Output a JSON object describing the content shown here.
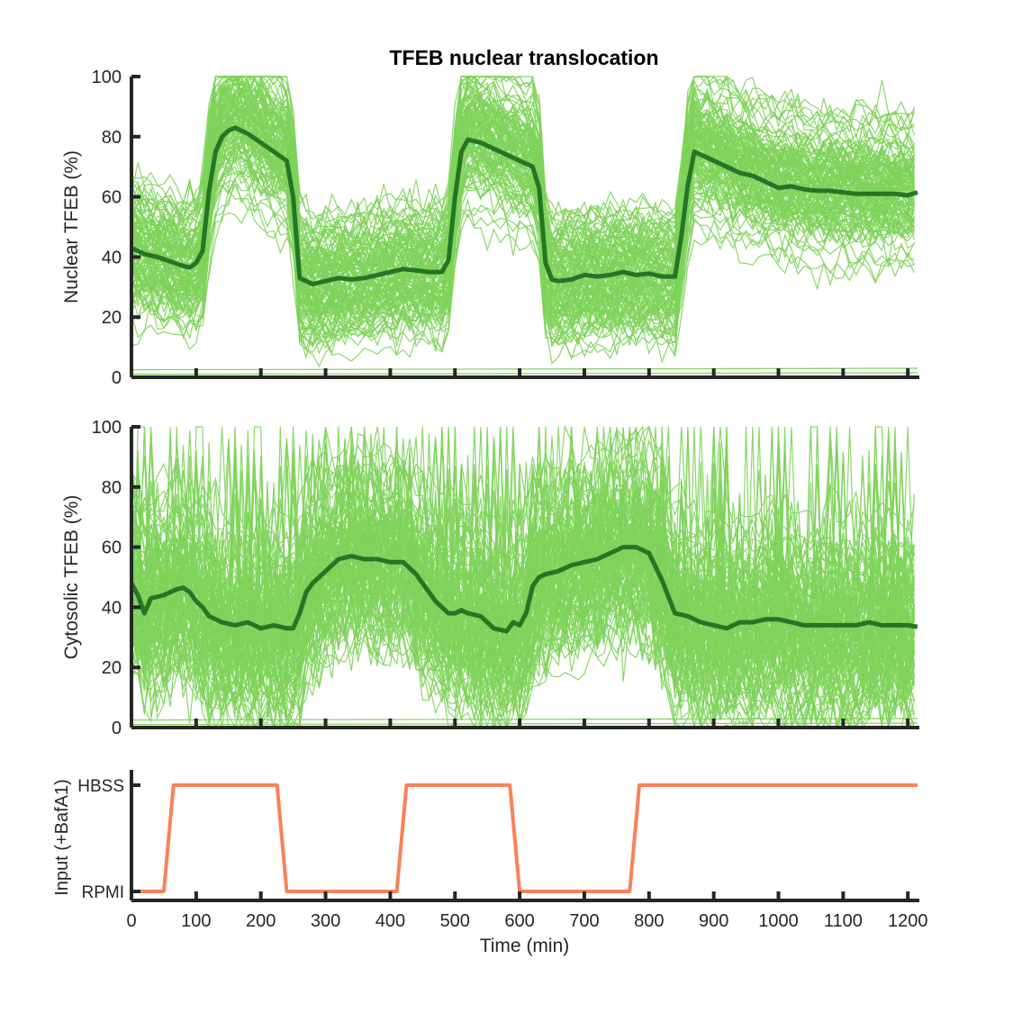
{
  "title": "TFEB nuclear translocation",
  "chart_data": [
    {
      "type": "line",
      "ylabel": "Nuclear TFEB (%)",
      "xlim": [
        0,
        1215
      ],
      "ylim": [
        0,
        100
      ],
      "yticks": [
        0,
        20,
        40,
        60,
        80,
        100
      ],
      "xticks": [
        0,
        100,
        200,
        300,
        400,
        500,
        600,
        700,
        800,
        900,
        1000,
        1100,
        1200
      ],
      "colors": {
        "cells": "#7ed35a",
        "mean": "#267526"
      },
      "mean_series": {
        "x": [
          0,
          20,
          40,
          60,
          80,
          90,
          100,
          110,
          120,
          130,
          140,
          150,
          160,
          180,
          200,
          220,
          240,
          250,
          260,
          280,
          300,
          320,
          340,
          360,
          380,
          400,
          420,
          440,
          460,
          470,
          480,
          490,
          500,
          510,
          520,
          540,
          560,
          580,
          600,
          620,
          630,
          640,
          650,
          660,
          680,
          700,
          720,
          740,
          760,
          780,
          800,
          820,
          840,
          850,
          860,
          870,
          880,
          900,
          920,
          940,
          960,
          980,
          1000,
          1020,
          1040,
          1060,
          1080,
          1100,
          1120,
          1140,
          1160,
          1180,
          1200,
          1215
        ],
        "y": [
          43,
          41,
          40,
          38.5,
          37,
          36.5,
          38,
          42,
          62,
          75,
          80,
          82,
          83,
          81,
          78,
          75,
          72,
          60,
          33,
          31,
          32,
          33,
          32.5,
          33,
          34,
          35,
          36,
          35.5,
          35,
          35,
          35,
          39,
          60,
          75,
          79,
          78,
          76,
          74,
          72,
          70,
          63,
          38,
          32.5,
          32,
          32.5,
          34,
          33.5,
          34,
          35,
          34,
          34.5,
          33.5,
          33.5,
          47,
          64,
          75,
          74,
          72,
          70,
          68,
          67,
          65,
          63,
          63.5,
          62.5,
          62,
          62,
          61.5,
          61,
          61,
          61,
          61,
          60.5,
          61.5
        ]
      },
      "cell_trace_count": 120
    },
    {
      "type": "line",
      "ylabel": "Cytosolic TFEB (%)",
      "xlim": [
        0,
        1215
      ],
      "ylim": [
        0,
        100
      ],
      "yticks": [
        0,
        20,
        40,
        60,
        80,
        100
      ],
      "xticks": [
        0,
        100,
        200,
        300,
        400,
        500,
        600,
        700,
        800,
        900,
        1000,
        1100,
        1200
      ],
      "colors": {
        "cells": "#7ed35a",
        "mean": "#267526"
      },
      "mean_series": {
        "x": [
          0,
          10,
          20,
          30,
          50,
          60,
          70,
          80,
          90,
          100,
          110,
          120,
          140,
          160,
          180,
          200,
          220,
          240,
          250,
          260,
          270,
          280,
          300,
          320,
          340,
          360,
          380,
          400,
          420,
          440,
          460,
          470,
          480,
          490,
          500,
          510,
          520,
          540,
          560,
          580,
          590,
          600,
          610,
          620,
          630,
          640,
          660,
          680,
          700,
          720,
          740,
          760,
          780,
          800,
          820,
          840,
          860,
          880,
          900,
          920,
          940,
          960,
          980,
          1000,
          1020,
          1040,
          1060,
          1080,
          1100,
          1120,
          1140,
          1160,
          1180,
          1200,
          1215
        ],
        "y": [
          48,
          44,
          38,
          43,
          44,
          45,
          46,
          46.5,
          45,
          42,
          40,
          37,
          35,
          34,
          35,
          33,
          34,
          33,
          33,
          38,
          45,
          48,
          52,
          56,
          57,
          56,
          56,
          55,
          55,
          51,
          45,
          42,
          40,
          38,
          38,
          39,
          38,
          37,
          33,
          32,
          35,
          34,
          38,
          47,
          50,
          51,
          52,
          54,
          55,
          56,
          58,
          60,
          60,
          58,
          49,
          38,
          37,
          35,
          34,
          33,
          35,
          35,
          36,
          36,
          35,
          34,
          34,
          34,
          34,
          34,
          35,
          34,
          34,
          34,
          33.5
        ]
      },
      "cell_trace_count": 120
    },
    {
      "type": "line",
      "ylabel": "Input (+BafA1)",
      "xlabel": "Time (min)",
      "xlim": [
        0,
        1215
      ],
      "ytick_labels": [
        "RPMI",
        "HBSS"
      ],
      "xticks": [
        0,
        100,
        200,
        300,
        400,
        500,
        600,
        700,
        800,
        900,
        1000,
        1100,
        1200
      ],
      "colors": {
        "input": "#f8825a"
      },
      "series": {
        "x": [
          0,
          50,
          65,
          225,
          240,
          410,
          425,
          585,
          600,
          770,
          785,
          1215
        ],
        "y": [
          0,
          0,
          1,
          1,
          0,
          0,
          1,
          1,
          0,
          0,
          1,
          1
        ]
      }
    }
  ]
}
